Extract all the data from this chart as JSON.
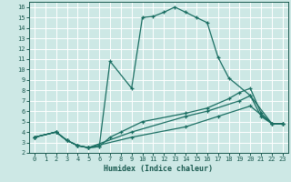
{
  "xlabel": "Humidex (Indice chaleur)",
  "bg_color": "#cde8e5",
  "grid_color": "#ffffff",
  "line_color": "#1a6e62",
  "xlim": [
    -0.5,
    23.5
  ],
  "ylim": [
    2,
    16.5
  ],
  "xticks": [
    0,
    1,
    2,
    3,
    4,
    5,
    6,
    7,
    8,
    9,
    10,
    11,
    12,
    13,
    14,
    15,
    16,
    17,
    18,
    19,
    20,
    21,
    22,
    23
  ],
  "yticks": [
    2,
    3,
    4,
    5,
    6,
    7,
    8,
    9,
    10,
    11,
    12,
    13,
    14,
    15,
    16
  ],
  "lines": [
    {
      "x": [
        0,
        2,
        3,
        4,
        5,
        6,
        7,
        9,
        10,
        11,
        12,
        13,
        14,
        15,
        16,
        17,
        18,
        20,
        21,
        22,
        23
      ],
      "y": [
        3.5,
        4.0,
        3.2,
        2.7,
        2.5,
        2.6,
        10.8,
        8.2,
        15.0,
        15.1,
        15.5,
        16.0,
        15.5,
        15.0,
        14.5,
        11.2,
        9.2,
        7.5,
        5.5,
        4.8,
        4.8
      ]
    },
    {
      "x": [
        0,
        2,
        3,
        4,
        5,
        6,
        7,
        8,
        10,
        14,
        16,
        18,
        19,
        20,
        21,
        22,
        23
      ],
      "y": [
        3.5,
        4.0,
        3.2,
        2.7,
        2.5,
        2.6,
        3.5,
        4.0,
        5.0,
        5.8,
        6.3,
        7.2,
        7.8,
        8.2,
        5.8,
        4.8,
        4.8
      ]
    },
    {
      "x": [
        0,
        2,
        3,
        4,
        5,
        9,
        14,
        16,
        19,
        20,
        22,
        23
      ],
      "y": [
        3.5,
        4.0,
        3.2,
        2.7,
        2.5,
        4.0,
        5.5,
        6.0,
        7.0,
        7.5,
        4.8,
        4.8
      ]
    },
    {
      "x": [
        0,
        2,
        3,
        4,
        5,
        9,
        14,
        17,
        20,
        22,
        23
      ],
      "y": [
        3.5,
        4.0,
        3.2,
        2.7,
        2.5,
        3.5,
        4.5,
        5.5,
        6.5,
        4.8,
        4.8
      ]
    }
  ]
}
